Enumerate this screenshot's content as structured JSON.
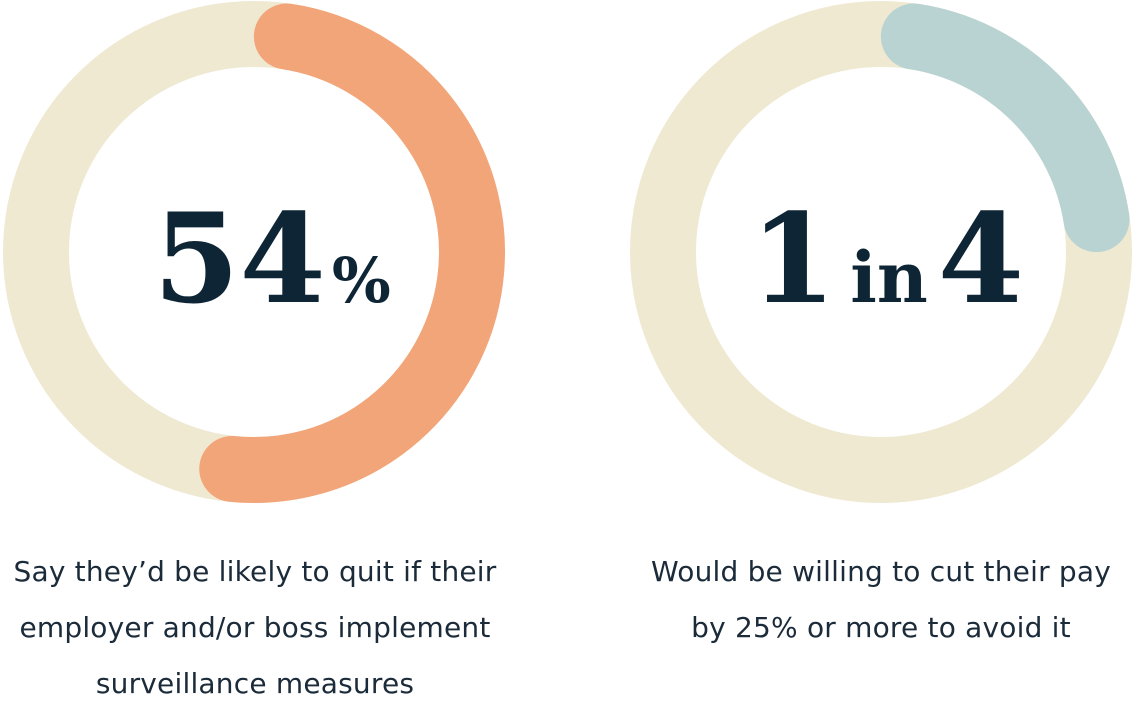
{
  "chart_data": [
    {
      "type": "pie",
      "style": "donut",
      "value": 54,
      "unit": "%",
      "center_text": {
        "number": "54",
        "suffix": "%"
      },
      "caption": "Say they’d be likely to quit if their employer and/or boss implement surveillance measures",
      "colors": {
        "fill": "#f3a57a",
        "track": "#efe9d2"
      }
    },
    {
      "type": "pie",
      "style": "donut",
      "value": 25,
      "unit": "%",
      "center_text": {
        "number_a": "1",
        "connector": "in",
        "number_b": "4"
      },
      "caption": "Would be willing to cut their pay by 25% or more to avoid it",
      "colors": {
        "fill": "#b8d3d2",
        "track": "#efe9d2"
      }
    }
  ]
}
